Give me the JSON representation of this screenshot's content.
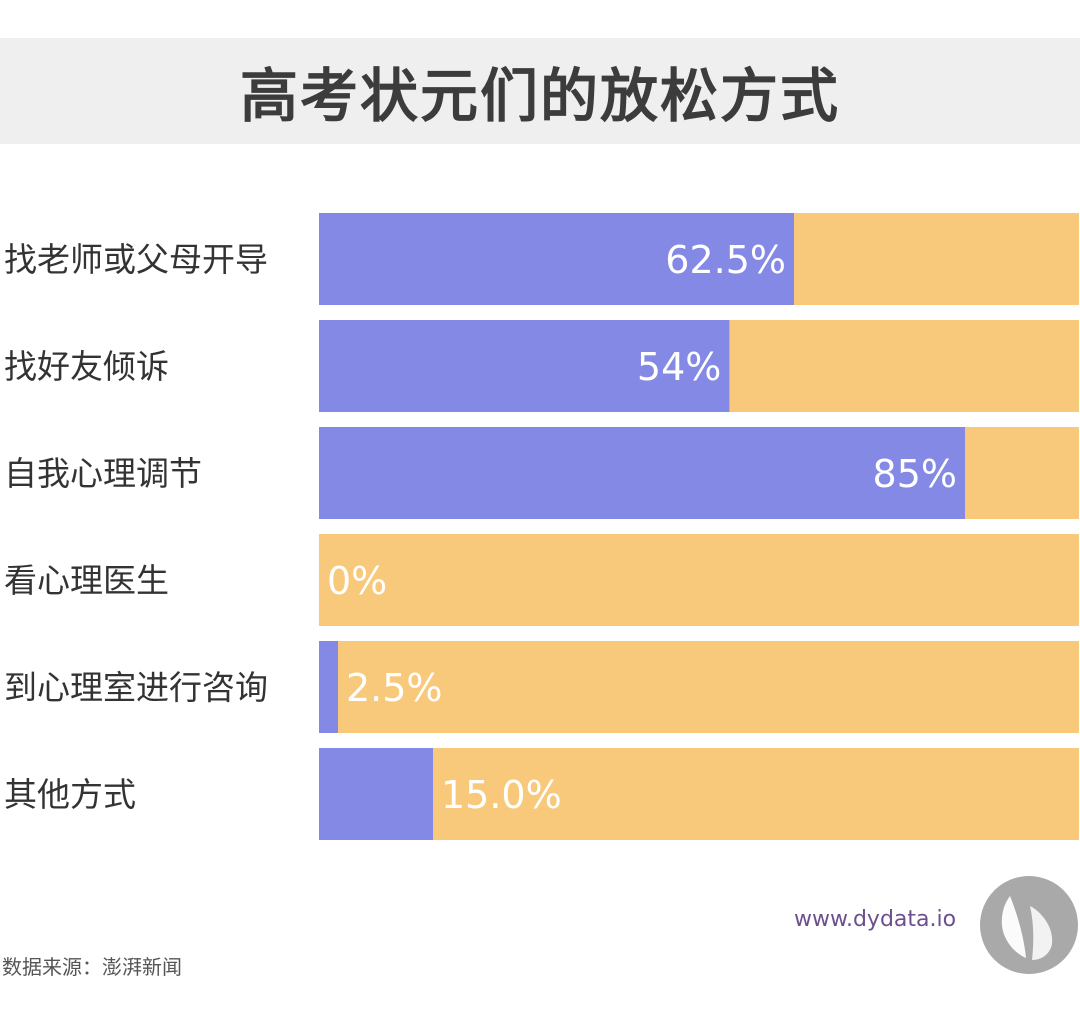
{
  "header": {
    "title": "高考状元们的放松方式"
  },
  "chart_data": {
    "type": "bar",
    "orientation": "horizontal",
    "stacked_full": true,
    "categories": [
      "找老师或父母开导",
      "找好友倾诉",
      "自我心理调节",
      "看心理医生",
      "到心理室进行咨询",
      "其他方式"
    ],
    "values": [
      62.5,
      54,
      85,
      0,
      2.5,
      15.0
    ],
    "value_labels": [
      "62.5%",
      "54%",
      "85%",
      "0%",
      "2.5%",
      "15.0%"
    ],
    "xlim": [
      0,
      100
    ],
    "colors": {
      "value": "#8589e6",
      "remainder": "#f8c97a"
    },
    "grid": false,
    "legend": "none"
  },
  "footer": {
    "website": "www.dydata.io",
    "source": "数据来源：澎湃新闻",
    "logo_icon": "butterfly-logo-icon"
  }
}
